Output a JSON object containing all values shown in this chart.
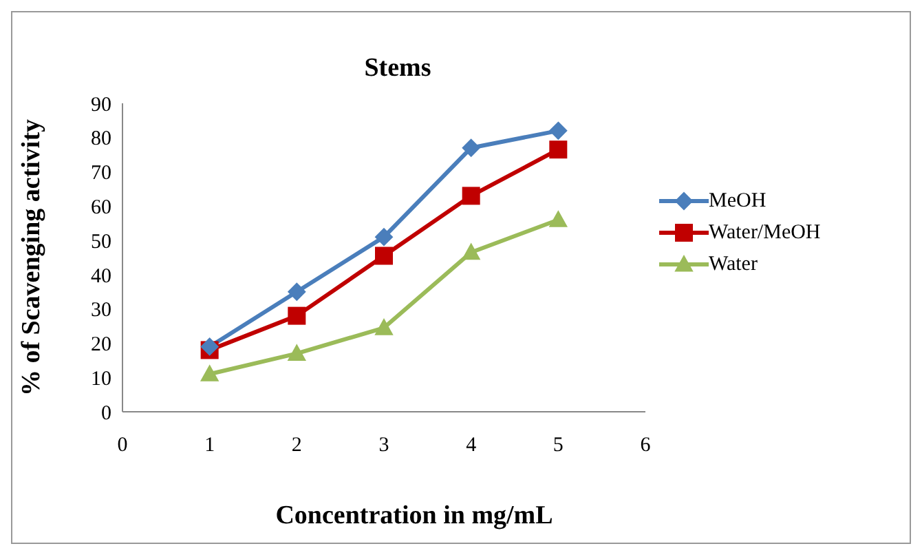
{
  "chart_data": {
    "type": "line",
    "title": "Stems",
    "xlabel": "Concentration in mg/mL",
    "ylabel": "% of Scavenging activity",
    "x": [
      1,
      2,
      3,
      4,
      5
    ],
    "series": [
      {
        "name": "MeOH",
        "color": "#4a7ebb",
        "marker": "diamond",
        "values": [
          19,
          35,
          51,
          77,
          82
        ]
      },
      {
        "name": "Water/MeOH",
        "color": "#c00000",
        "marker": "square",
        "values": [
          18,
          28,
          45.5,
          63,
          76.5
        ]
      },
      {
        "name": "Water",
        "color": "#9bbb59",
        "marker": "triangle",
        "values": [
          11,
          17,
          24.5,
          46.5,
          56
        ]
      }
    ],
    "xlim": [
      0,
      6
    ],
    "xticks": [
      0,
      1,
      2,
      3,
      4,
      5,
      6
    ],
    "ylim": [
      0,
      90
    ],
    "yticks": [
      0,
      10,
      20,
      30,
      40,
      50,
      60,
      70,
      80,
      90
    ],
    "grid": false,
    "legend": "right",
    "line_style": "solid"
  }
}
